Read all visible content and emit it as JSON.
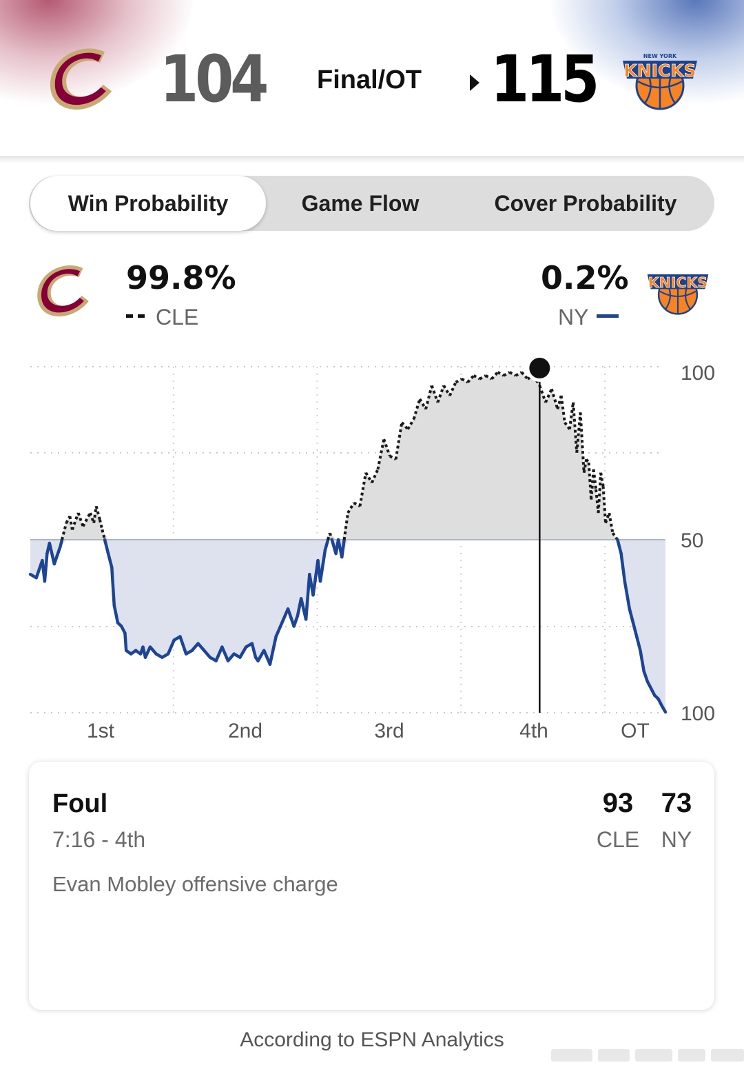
{
  "header": {
    "away": {
      "abbr": "CLE",
      "score": "104",
      "logo": "cavaliers-c-logo"
    },
    "home": {
      "abbr": "NY",
      "score": "115",
      "logo": "knicks-logo",
      "logo_text": "KNICKS",
      "logo_subtext": "NEW YORK"
    },
    "status": "Final/OT",
    "winner": "home"
  },
  "tabs": [
    {
      "label": "Win Probability",
      "active": true
    },
    {
      "label": "Game Flow",
      "active": false
    },
    {
      "label": "Cover Probability",
      "active": false
    }
  ],
  "win_prob": {
    "away": {
      "pct": "99.8%",
      "abbr": "CLE",
      "legend_style": "dashed-black"
    },
    "home": {
      "pct": "0.2%",
      "abbr": "NY",
      "legend_style": "solid-blue"
    }
  },
  "chart_data": {
    "type": "line",
    "y_tick_labels": [
      "100",
      "50",
      "100"
    ],
    "x_tick_labels": [
      "1st",
      "2nd",
      "3rd",
      "4th",
      "OT"
    ],
    "ylim": [
      0,
      100
    ],
    "x_unit": "game minutes",
    "xlim": [
      0,
      53
    ],
    "x_period_starts": [
      0,
      12,
      24,
      36,
      48
    ],
    "grid": true,
    "colors": {
      "home_line": "#1d4593",
      "home_fill": "#dde2ee",
      "away_line": "#1a1a1a",
      "away_fill": "#dedede",
      "midline": "#aeb5c3"
    },
    "series": [
      {
        "name": "CLE",
        "values_note_unused": "",
        "x": [
          0,
          0.5,
          1,
          1.2,
          1.4,
          1.6,
          2,
          2.5,
          3,
          3.3,
          3.5,
          4,
          4.4,
          5,
          5.3,
          5.5,
          5.8,
          6,
          6.5,
          6.8,
          7,
          7.3,
          7.6,
          7.9,
          8,
          8.4,
          8.8,
          9.2,
          9.4,
          9.6,
          10,
          10.5,
          11,
          11.5,
          12,
          12.5,
          13,
          13.5,
          14,
          14.5,
          15,
          15.5,
          16,
          16.5,
          17,
          17.5,
          18,
          18.5,
          18.8,
          19,
          19.5,
          20,
          20.5,
          21,
          21.5,
          22,
          22.3,
          22.6,
          23,
          23.3,
          23.6,
          24,
          24.2,
          24.6,
          25,
          25.5,
          25.7,
          26,
          26.5,
          27,
          27.5,
          28,
          28.5,
          29,
          29.5,
          30,
          30.5,
          31,
          31.5,
          32,
          32.5,
          33,
          33.5,
          34,
          34.5,
          35,
          35.5,
          36,
          36.5,
          37,
          37.5,
          38,
          38.5,
          39,
          39.5,
          40,
          40.5,
          41,
          41.5,
          42,
          42.5,
          43,
          43.5,
          44,
          44.3,
          44.6,
          45,
          45.3,
          45.6,
          45.9,
          46.2,
          46.4,
          46.6,
          46.8,
          47,
          47.2,
          47.4,
          47.6,
          47.8,
          48,
          48.3,
          48.6,
          49,
          49.3,
          49.6,
          50,
          50.3,
          50.6,
          50.9,
          51.2,
          51.5,
          51.8,
          52.1,
          52.4,
          52.7,
          53
        ],
        "values": [
          40,
          39,
          44,
          38,
          46,
          49,
          43,
          48,
          55,
          57,
          53,
          58,
          54,
          58,
          55,
          60,
          56,
          53,
          46,
          42,
          31,
          26,
          25,
          23,
          18,
          17,
          18,
          17,
          19,
          16,
          19,
          17,
          16,
          17,
          21,
          22,
          17,
          18,
          20,
          18,
          16,
          15,
          19,
          15,
          17,
          16,
          19,
          20,
          16,
          15,
          18,
          14,
          22,
          26,
          30,
          25,
          28,
          33,
          27,
          40,
          34,
          44,
          38,
          47,
          52,
          46,
          50,
          45,
          58,
          61,
          60,
          70,
          67,
          71,
          80,
          75,
          74,
          85,
          83,
          86,
          92,
          89,
          96,
          91,
          96,
          93,
          97,
          98,
          97,
          99,
          98,
          99,
          98,
          100,
          99,
          100,
          99,
          100,
          98,
          99,
          96,
          91,
          95,
          89,
          93,
          85,
          83,
          91,
          76,
          88,
          70,
          74,
          73,
          62,
          71,
          65,
          58,
          70,
          66,
          55,
          58,
          52,
          50,
          46,
          38,
          30,
          26,
          22,
          18,
          12,
          9,
          7,
          5,
          4,
          2,
          0.2
        ]
      }
    ],
    "selected_point": {
      "x": 42.5,
      "y": 99.8
    }
  },
  "play": {
    "title": "Foul",
    "time": "7:16 - 4th",
    "description": "Evan Mobley offensive charge",
    "away_score": "93",
    "home_score": "73",
    "away_abbr": "CLE",
    "home_abbr": "NY"
  },
  "footer": "According to ESPN Analytics"
}
